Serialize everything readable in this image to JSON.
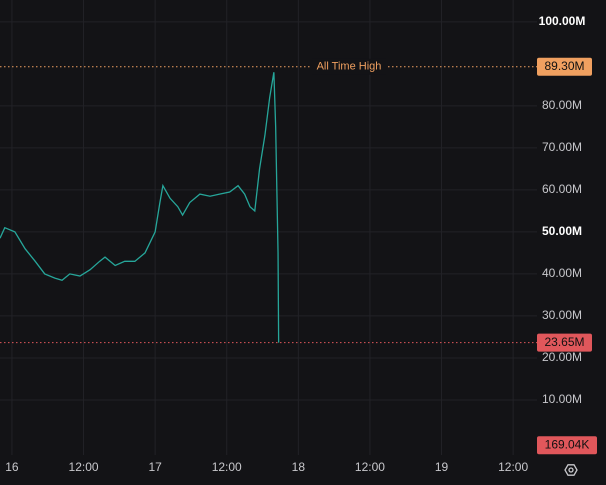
{
  "chart_data": {
    "type": "line",
    "x": [
      -2.0,
      -1.2,
      0.5,
      2.2,
      3.9,
      5.5,
      7.2,
      8.4,
      9.7,
      11.4,
      13.1,
      14.7,
      15.6,
      17.3,
      18.9,
      20.6,
      22.3,
      24.0,
      24.8,
      25.3,
      26.5,
      27.8,
      28.6,
      29.8,
      31.5,
      33.2,
      34.8,
      36.5,
      37.9,
      39.0,
      39.9,
      40.7,
      41.5,
      42.4,
      43.2,
      43.9,
      44.2,
      44.6,
      44.7
    ],
    "series": [
      {
        "color": "#26a69a",
        "values": [
          48.5,
          51,
          50,
          46,
          43,
          40,
          39,
          38.5,
          40,
          39.5,
          41,
          43,
          44,
          42,
          43,
          43,
          45,
          50,
          57,
          61,
          58,
          56,
          54,
          57,
          59,
          58.5,
          59,
          59.5,
          61,
          59,
          56,
          55,
          65,
          73,
          82,
          88,
          75,
          45,
          23.65
        ]
      }
    ],
    "xlim": [
      -2,
      88
    ],
    "xticks": [
      {
        "value": 0,
        "label": "16"
      },
      {
        "value": 12,
        "label": "12:00"
      },
      {
        "value": 24,
        "label": "17"
      },
      {
        "value": 36,
        "label": "12:00"
      },
      {
        "value": 48,
        "label": "18"
      },
      {
        "value": 60,
        "label": "12:00"
      },
      {
        "value": 72,
        "label": "19"
      },
      {
        "value": 84,
        "label": "12:00"
      }
    ],
    "ylim": [
      -3.1,
      105.2
    ],
    "yticks": [
      {
        "value": 10,
        "label": "10.00M"
      },
      {
        "value": 20,
        "label": "20.00M"
      },
      {
        "value": 30,
        "label": "30.00M"
      },
      {
        "value": 40,
        "label": "40.00M"
      },
      {
        "value": 50,
        "label": "50.00M",
        "bold": true
      },
      {
        "value": 60,
        "label": "60.00M"
      },
      {
        "value": 70,
        "label": "70.00M"
      },
      {
        "value": 80,
        "label": "80.00M"
      },
      {
        "value": 100,
        "label": "100.00M",
        "bold": true
      }
    ],
    "grid": true,
    "price_lines": [
      {
        "value": 89.3,
        "label": "89.30M",
        "text": "All Time High",
        "color": "#f0a060"
      },
      {
        "value": 23.65,
        "label": "23.65M",
        "color": "#e0575b"
      }
    ],
    "volume_marker": {
      "value": 0.16904,
      "label": "169.04K",
      "color": "#e0575b"
    }
  }
}
